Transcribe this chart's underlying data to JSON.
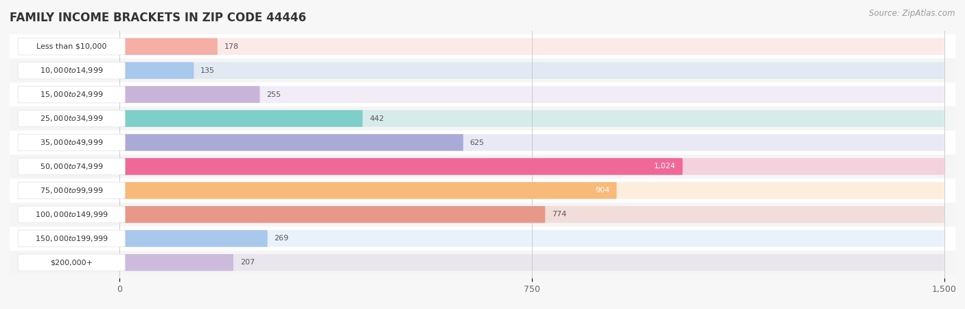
{
  "title": "FAMILY INCOME BRACKETS IN ZIP CODE 44446",
  "source": "Source: ZipAtlas.com",
  "categories": [
    "Less than $10,000",
    "$10,000 to $14,999",
    "$15,000 to $24,999",
    "$25,000 to $34,999",
    "$35,000 to $49,999",
    "$50,000 to $74,999",
    "$75,000 to $99,999",
    "$100,000 to $149,999",
    "$150,000 to $199,999",
    "$200,000+"
  ],
  "values": [
    178,
    135,
    255,
    442,
    625,
    1024,
    904,
    774,
    269,
    207
  ],
  "bar_colors": [
    "#F5AFA6",
    "#A8C8EC",
    "#C8B4D8",
    "#7ECECA",
    "#AAAAD8",
    "#F06898",
    "#F8BA78",
    "#E89888",
    "#A8C8EC",
    "#CCBBDD"
  ],
  "xlim": [
    -200,
    1500
  ],
  "xlim_data_min": 0,
  "xlim_data_max": 1500,
  "xticks": [
    0,
    750,
    1500
  ],
  "background_color": "#f7f7f7",
  "row_bg_color_odd": "#ffffff",
  "row_bg_color_even": "#f0f0f0",
  "bar_bg_color": "#ebebeb",
  "title_fontsize": 12,
  "source_fontsize": 8.5,
  "label_fontsize": 8,
  "value_fontsize": 8
}
